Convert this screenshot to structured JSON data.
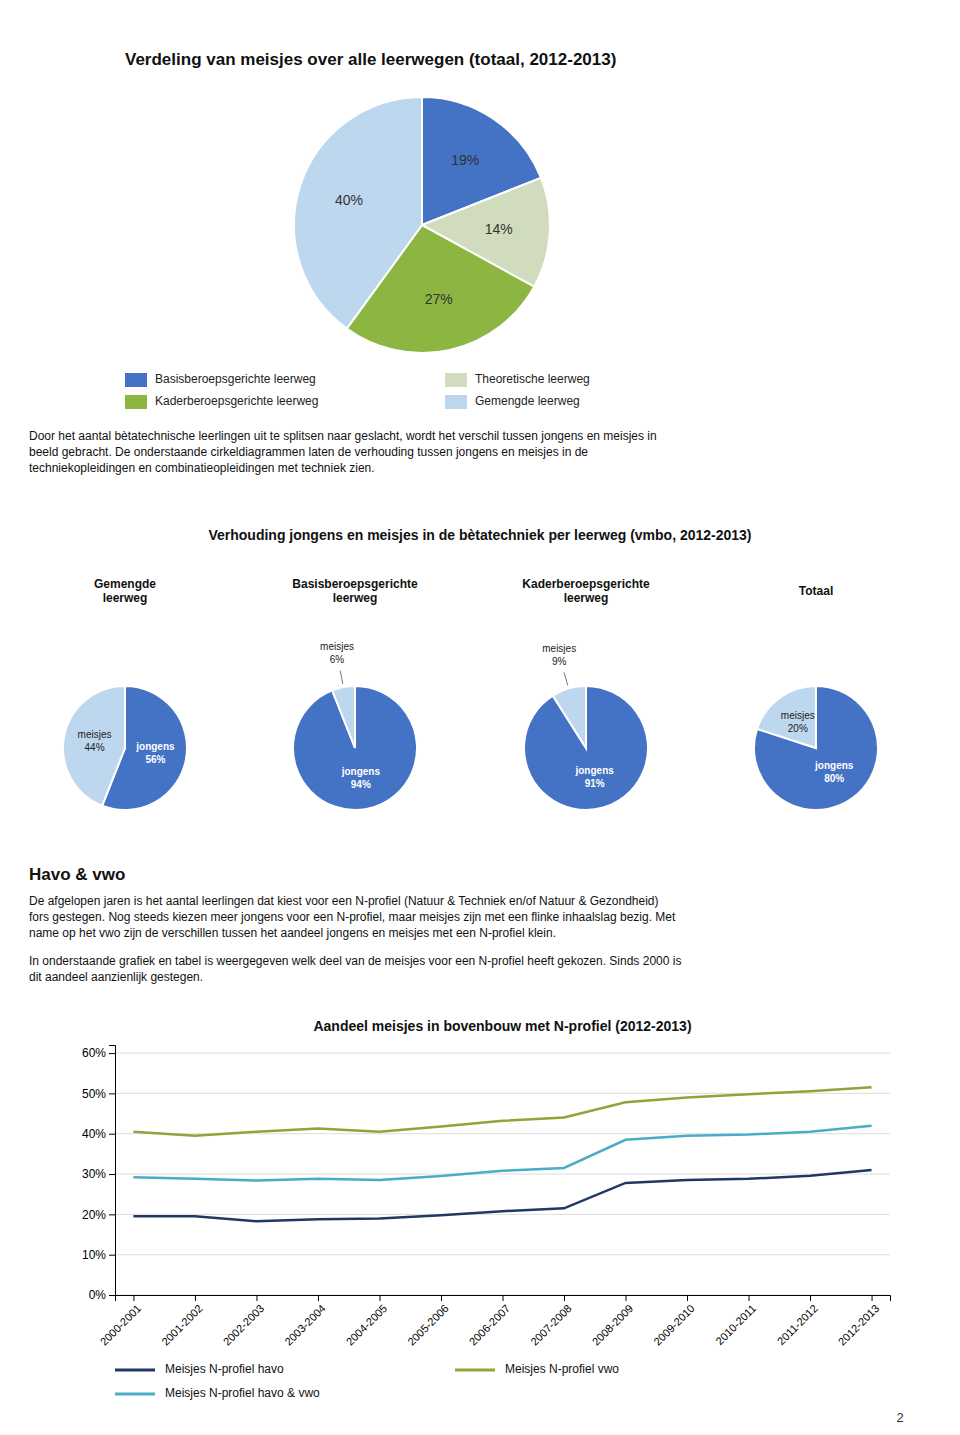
{
  "chart_data": [
    {
      "type": "pie",
      "title": "Verdeling van meisjes over alle leerwegen (totaal, 2012-2013)",
      "categories": [
        "Basisberoepsgerichte leerweg",
        "Theoretische leerweg",
        "Kaderberoepsgerichte leerweg",
        "Gemengde leerweg"
      ],
      "values": [
        19,
        14,
        27,
        40
      ],
      "value_labels": [
        "19%",
        "14%",
        "27%",
        "40%"
      ],
      "colors": [
        "#4472C4",
        "#D0DCBD",
        "#8DB542",
        "#BDD7EE"
      ],
      "data_labels": true,
      "legend": "bottom",
      "annotations": [
        "Door het aantal bètatechnische leerlingen uit te splitsen naar geslacht, wordt het verschil tussen jongens en meisjes in",
        "beeld gebracht. De onderstaande cirkeldiagrammen laten de verhouding tussen jongens en meisjes in de",
        "techniekopleidingen en combinatieopleidingen met techniek zien."
      ]
    },
    {
      "type": "pie",
      "title": "Gemengde\nleerweg",
      "categories": [
        "jongens",
        "meisjes"
      ],
      "values": [
        56,
        44
      ],
      "value_labels": [
        "56%",
        "44%"
      ],
      "colors": [
        "#4472C4",
        "#BDD7EE"
      ],
      "data_labels": true,
      "annotations": [
        "Verhouding jongens en meisjes in de bètatechniek per leerweg (vmbo, 2012-2013)"
      ]
    },
    {
      "type": "pie",
      "title": "Basisberoepsgerichte\nleerweg",
      "categories": [
        "jongens",
        "meisjes"
      ],
      "values": [
        94,
        6
      ],
      "value_labels": [
        "94%",
        "6%"
      ],
      "colors": [
        "#4472C4",
        "#BDD7EE"
      ],
      "data_labels": true
    },
    {
      "type": "pie",
      "title": "Kaderberoepsgerichte\nleerweg",
      "categories": [
        "jongens",
        "meisjes"
      ],
      "values": [
        91,
        9
      ],
      "value_labels": [
        "91%",
        "9%"
      ],
      "colors": [
        "#4472C4",
        "#BDD7EE"
      ],
      "data_labels": true
    },
    {
      "type": "pie",
      "title": "Totaal",
      "categories": [
        "jongens",
        "meisjes"
      ],
      "values": [
        80,
        20
      ],
      "value_labels": [
        "80%",
        "20%"
      ],
      "colors": [
        "#4472C4",
        "#BDD7EE"
      ],
      "data_labels": true
    },
    {
      "type": "line",
      "title": "Aandeel meisjes in bovenbouw met N-profiel (2012-2013)",
      "categories": [
        "2000-2001",
        "2001-2002",
        "2002-2003",
        "2003-2004",
        "2004-2005",
        "2005-2006",
        "2006-2007",
        "2007-2008",
        "2008-2009",
        "2009-2010",
        "2010-2011",
        "2011-2012",
        "2012-2013"
      ],
      "series": [
        {
          "name": "Meisjes N-profiel havo",
          "color": "#1F3864",
          "values": [
            0.195,
            0.195,
            0.183,
            0.188,
            0.19,
            0.198,
            0.208,
            0.215,
            0.278,
            0.285,
            0.288,
            0.296,
            0.31
          ]
        },
        {
          "name": "Meisjes N-profiel vwo",
          "color": "#92A33A",
          "values": [
            0.405,
            0.395,
            0.405,
            0.413,
            0.405,
            0.418,
            0.432,
            0.44,
            0.478,
            0.49,
            0.498,
            0.505,
            0.515
          ]
        },
        {
          "name": "Meisjes N-profiel havo & vwo",
          "color": "#4BACC6",
          "values": [
            0.292,
            0.288,
            0.284,
            0.288,
            0.285,
            0.295,
            0.308,
            0.315,
            0.385,
            0.395,
            0.398,
            0.405,
            0.42
          ]
        }
      ],
      "ylim": [
        0.0,
        0.62
      ],
      "yticks": [
        {
          "value": 0.0,
          "label": "0%"
        },
        {
          "value": 0.1,
          "label": "10%"
        },
        {
          "value": 0.2,
          "label": "20%"
        },
        {
          "value": 0.3,
          "label": "30%"
        },
        {
          "value": 0.4,
          "label": "40%"
        },
        {
          "value": 0.5,
          "label": "50%"
        },
        {
          "value": 0.6,
          "label": "60%"
        }
      ],
      "grid": true,
      "legend": "bottom",
      "annotations": [
        "Havo & vwo",
        "De afgelopen jaren is het aantal leerlingen dat kiest voor een N-profiel (Natuur & Techniek en/of Natuur & Gezondheid)",
        "fors gestegen. Nog steeds kiezen meer jongens voor een N-profiel, maar meisjes zijn met een flinke inhaalslag bezig. Met",
        "name op het vwo zijn de verschillen tussen het aandeel jongens en meisjes met een N-profiel klein.",
        "In onderstaande grafiek en tabel is weergegeven welk deel van de meisjes voor een N-profiel heeft gekozen. Sinds 2000 is",
        "dit aandeel aanzienlijk gestegen.",
        "2"
      ]
    }
  ]
}
